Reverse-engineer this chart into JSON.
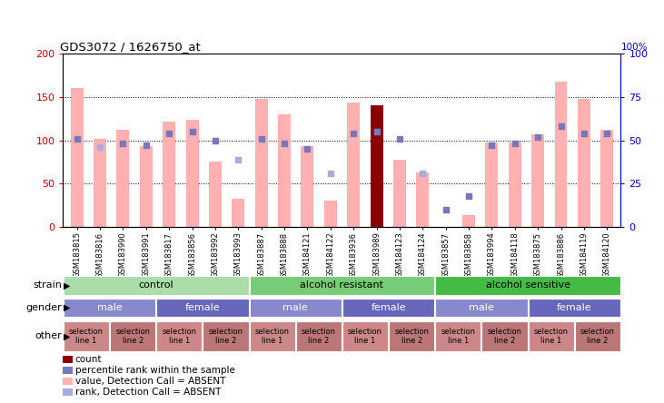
{
  "title": "GDS3072 / 1626750_at",
  "samples": [
    "GSM183815",
    "GSM183816",
    "GSM183990",
    "GSM183991",
    "GSM183817",
    "GSM183856",
    "GSM183992",
    "GSM183993",
    "GSM183887",
    "GSM183888",
    "GSM184121",
    "GSM184122",
    "GSM183936",
    "GSM183989",
    "GSM184123",
    "GSM184124",
    "GSM183857",
    "GSM183858",
    "GSM183994",
    "GSM184118",
    "GSM183875",
    "GSM183886",
    "GSM184119",
    "GSM184120"
  ],
  "bar_values": [
    160,
    102,
    112,
    93,
    122,
    124,
    75,
    32,
    148,
    130,
    93,
    30,
    143,
    140,
    77,
    63,
    0,
    14,
    97,
    97,
    107,
    168,
    148,
    112
  ],
  "rank_values": [
    51,
    46,
    48,
    47,
    54,
    55,
    50,
    39,
    51,
    48,
    45,
    31,
    54,
    55,
    51,
    31,
    10,
    18,
    47,
    48,
    52,
    58,
    54,
    54
  ],
  "bar_absent": [
    true,
    true,
    true,
    true,
    true,
    true,
    true,
    true,
    true,
    true,
    true,
    true,
    true,
    false,
    true,
    true,
    true,
    true,
    true,
    true,
    true,
    true,
    true,
    true
  ],
  "rank_absent": [
    false,
    true,
    false,
    false,
    false,
    false,
    false,
    true,
    false,
    false,
    false,
    true,
    false,
    false,
    false,
    true,
    false,
    false,
    false,
    false,
    false,
    false,
    false,
    false
  ],
  "count_index": 13,
  "ylim": [
    0,
    200
  ],
  "y2lim": [
    0,
    100
  ],
  "yticks": [
    0,
    50,
    100,
    150,
    200
  ],
  "y2ticks": [
    0,
    25,
    50,
    75,
    100
  ],
  "grid_lines": [
    50,
    100,
    150
  ],
  "strain_groups": [
    {
      "label": "control",
      "start": 0,
      "end": 8,
      "color": "#aaddaa"
    },
    {
      "label": "alcohol resistant",
      "start": 8,
      "end": 16,
      "color": "#77cc77"
    },
    {
      "label": "alcohol sensitive",
      "start": 16,
      "end": 24,
      "color": "#44bb44"
    }
  ],
  "gender_groups": [
    {
      "label": "male",
      "start": 0,
      "end": 4,
      "color": "#8888cc"
    },
    {
      "label": "female",
      "start": 4,
      "end": 8,
      "color": "#6666bb"
    },
    {
      "label": "male",
      "start": 8,
      "end": 12,
      "color": "#8888cc"
    },
    {
      "label": "female",
      "start": 12,
      "end": 16,
      "color": "#6666bb"
    },
    {
      "label": "male",
      "start": 16,
      "end": 20,
      "color": "#8888cc"
    },
    {
      "label": "female",
      "start": 20,
      "end": 24,
      "color": "#6666bb"
    }
  ],
  "other_groups": [
    {
      "label": "selection\nline 1",
      "start": 0,
      "end": 2,
      "color": "#cc8888"
    },
    {
      "label": "selection\nline 2",
      "start": 2,
      "end": 4,
      "color": "#bb7777"
    },
    {
      "label": "selection\nline 1",
      "start": 4,
      "end": 6,
      "color": "#cc8888"
    },
    {
      "label": "selection\nline 2",
      "start": 6,
      "end": 8,
      "color": "#bb7777"
    },
    {
      "label": "selection\nline 1",
      "start": 8,
      "end": 10,
      "color": "#cc8888"
    },
    {
      "label": "selection\nline 2",
      "start": 10,
      "end": 12,
      "color": "#bb7777"
    },
    {
      "label": "selection\nline 1",
      "start": 12,
      "end": 14,
      "color": "#cc8888"
    },
    {
      "label": "selection\nline 2",
      "start": 14,
      "end": 16,
      "color": "#bb7777"
    },
    {
      "label": "selection\nline 1",
      "start": 16,
      "end": 18,
      "color": "#cc8888"
    },
    {
      "label": "selection\nline 2",
      "start": 18,
      "end": 20,
      "color": "#bb7777"
    },
    {
      "label": "selection\nline 1",
      "start": 20,
      "end": 22,
      "color": "#cc8888"
    },
    {
      "label": "selection\nline 2",
      "start": 22,
      "end": 24,
      "color": "#bb7777"
    }
  ],
  "bar_color_normal": "#ffb0b0",
  "bar_color_count": "#8b0000",
  "rank_color_normal": "#7777bb",
  "rank_color_absent": "#aaaadd",
  "dot_size": 22,
  "bar_width": 0.55,
  "ylabel_color": "#cc0000",
  "y2label_color": "#0000cc",
  "legend_items": [
    {
      "color": "#8b0000",
      "label": "count"
    },
    {
      "color": "#7777bb",
      "label": "percentile rank within the sample"
    },
    {
      "color": "#ffb0b0",
      "label": "value, Detection Call = ABSENT"
    },
    {
      "color": "#aaaadd",
      "label": "rank, Detection Call = ABSENT"
    }
  ]
}
